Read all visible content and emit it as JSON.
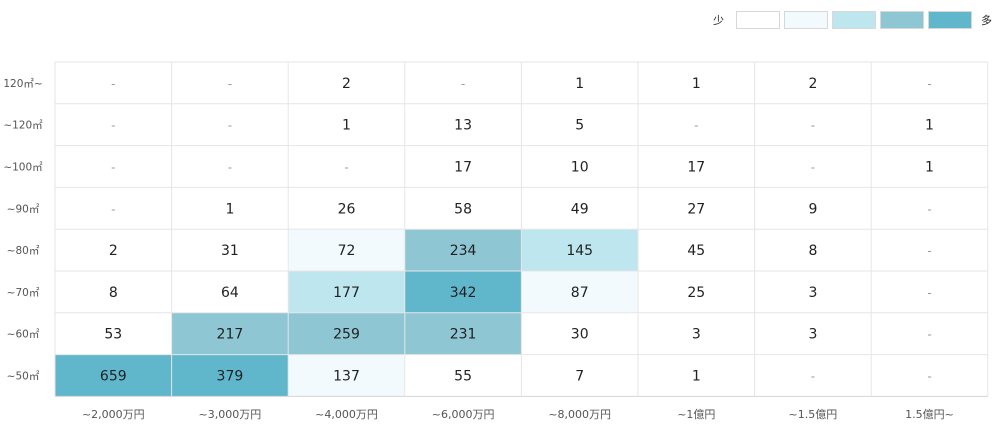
{
  "legend": {
    "low_label": "少",
    "high_label": "多",
    "colors": [
      "#ffffff",
      "#f2fafd",
      "#bde6ef",
      "#8ec6d4",
      "#60b7cc"
    ]
  },
  "chart_data": {
    "type": "heatmap",
    "title": "",
    "xlabel": "",
    "ylabel": "",
    "x_categories": [
      "~2,000万円",
      "~3,000万円",
      "~4,000万円",
      "~6,000万円",
      "~8,000万円",
      "~1億円",
      "~1.5億円",
      "1.5億円~"
    ],
    "y_categories": [
      "120㎡~",
      "~120㎡",
      "~100㎡",
      "~90㎡",
      "~80㎡",
      "~70㎡",
      "~60㎡",
      "~50㎡"
    ],
    "values": [
      [
        "-",
        "-",
        "2",
        "-",
        "1",
        "1",
        "2",
        "-"
      ],
      [
        "-",
        "-",
        "1",
        "13",
        "5",
        "-",
        "-",
        "1"
      ],
      [
        "-",
        "-",
        "-",
        "17",
        "10",
        "17",
        "-",
        "1"
      ],
      [
        "-",
        "1",
        "26",
        "58",
        "49",
        "27",
        "9",
        "-"
      ],
      [
        "2",
        "31",
        "72",
        "234",
        "145",
        "45",
        "8",
        "-"
      ],
      [
        "8",
        "64",
        "177",
        "342",
        "87",
        "25",
        "3",
        "-"
      ],
      [
        "53",
        "217",
        "259",
        "231",
        "30",
        "3",
        "3",
        "-"
      ],
      [
        "659",
        "379",
        "137",
        "55",
        "7",
        "1",
        "-",
        "-"
      ]
    ],
    "color_levels": [
      [
        0,
        0,
        0,
        0,
        0,
        0,
        0,
        0
      ],
      [
        0,
        0,
        0,
        0,
        0,
        0,
        0,
        0
      ],
      [
        0,
        0,
        0,
        0,
        0,
        0,
        0,
        0
      ],
      [
        0,
        0,
        0,
        0,
        0,
        0,
        0,
        0
      ],
      [
        0,
        0,
        1,
        3,
        2,
        0,
        0,
        0
      ],
      [
        0,
        0,
        2,
        4,
        1,
        0,
        0,
        0
      ],
      [
        0,
        3,
        3,
        3,
        0,
        0,
        0,
        0
      ],
      [
        4,
        4,
        1,
        0,
        0,
        0,
        0,
        0
      ]
    ]
  }
}
